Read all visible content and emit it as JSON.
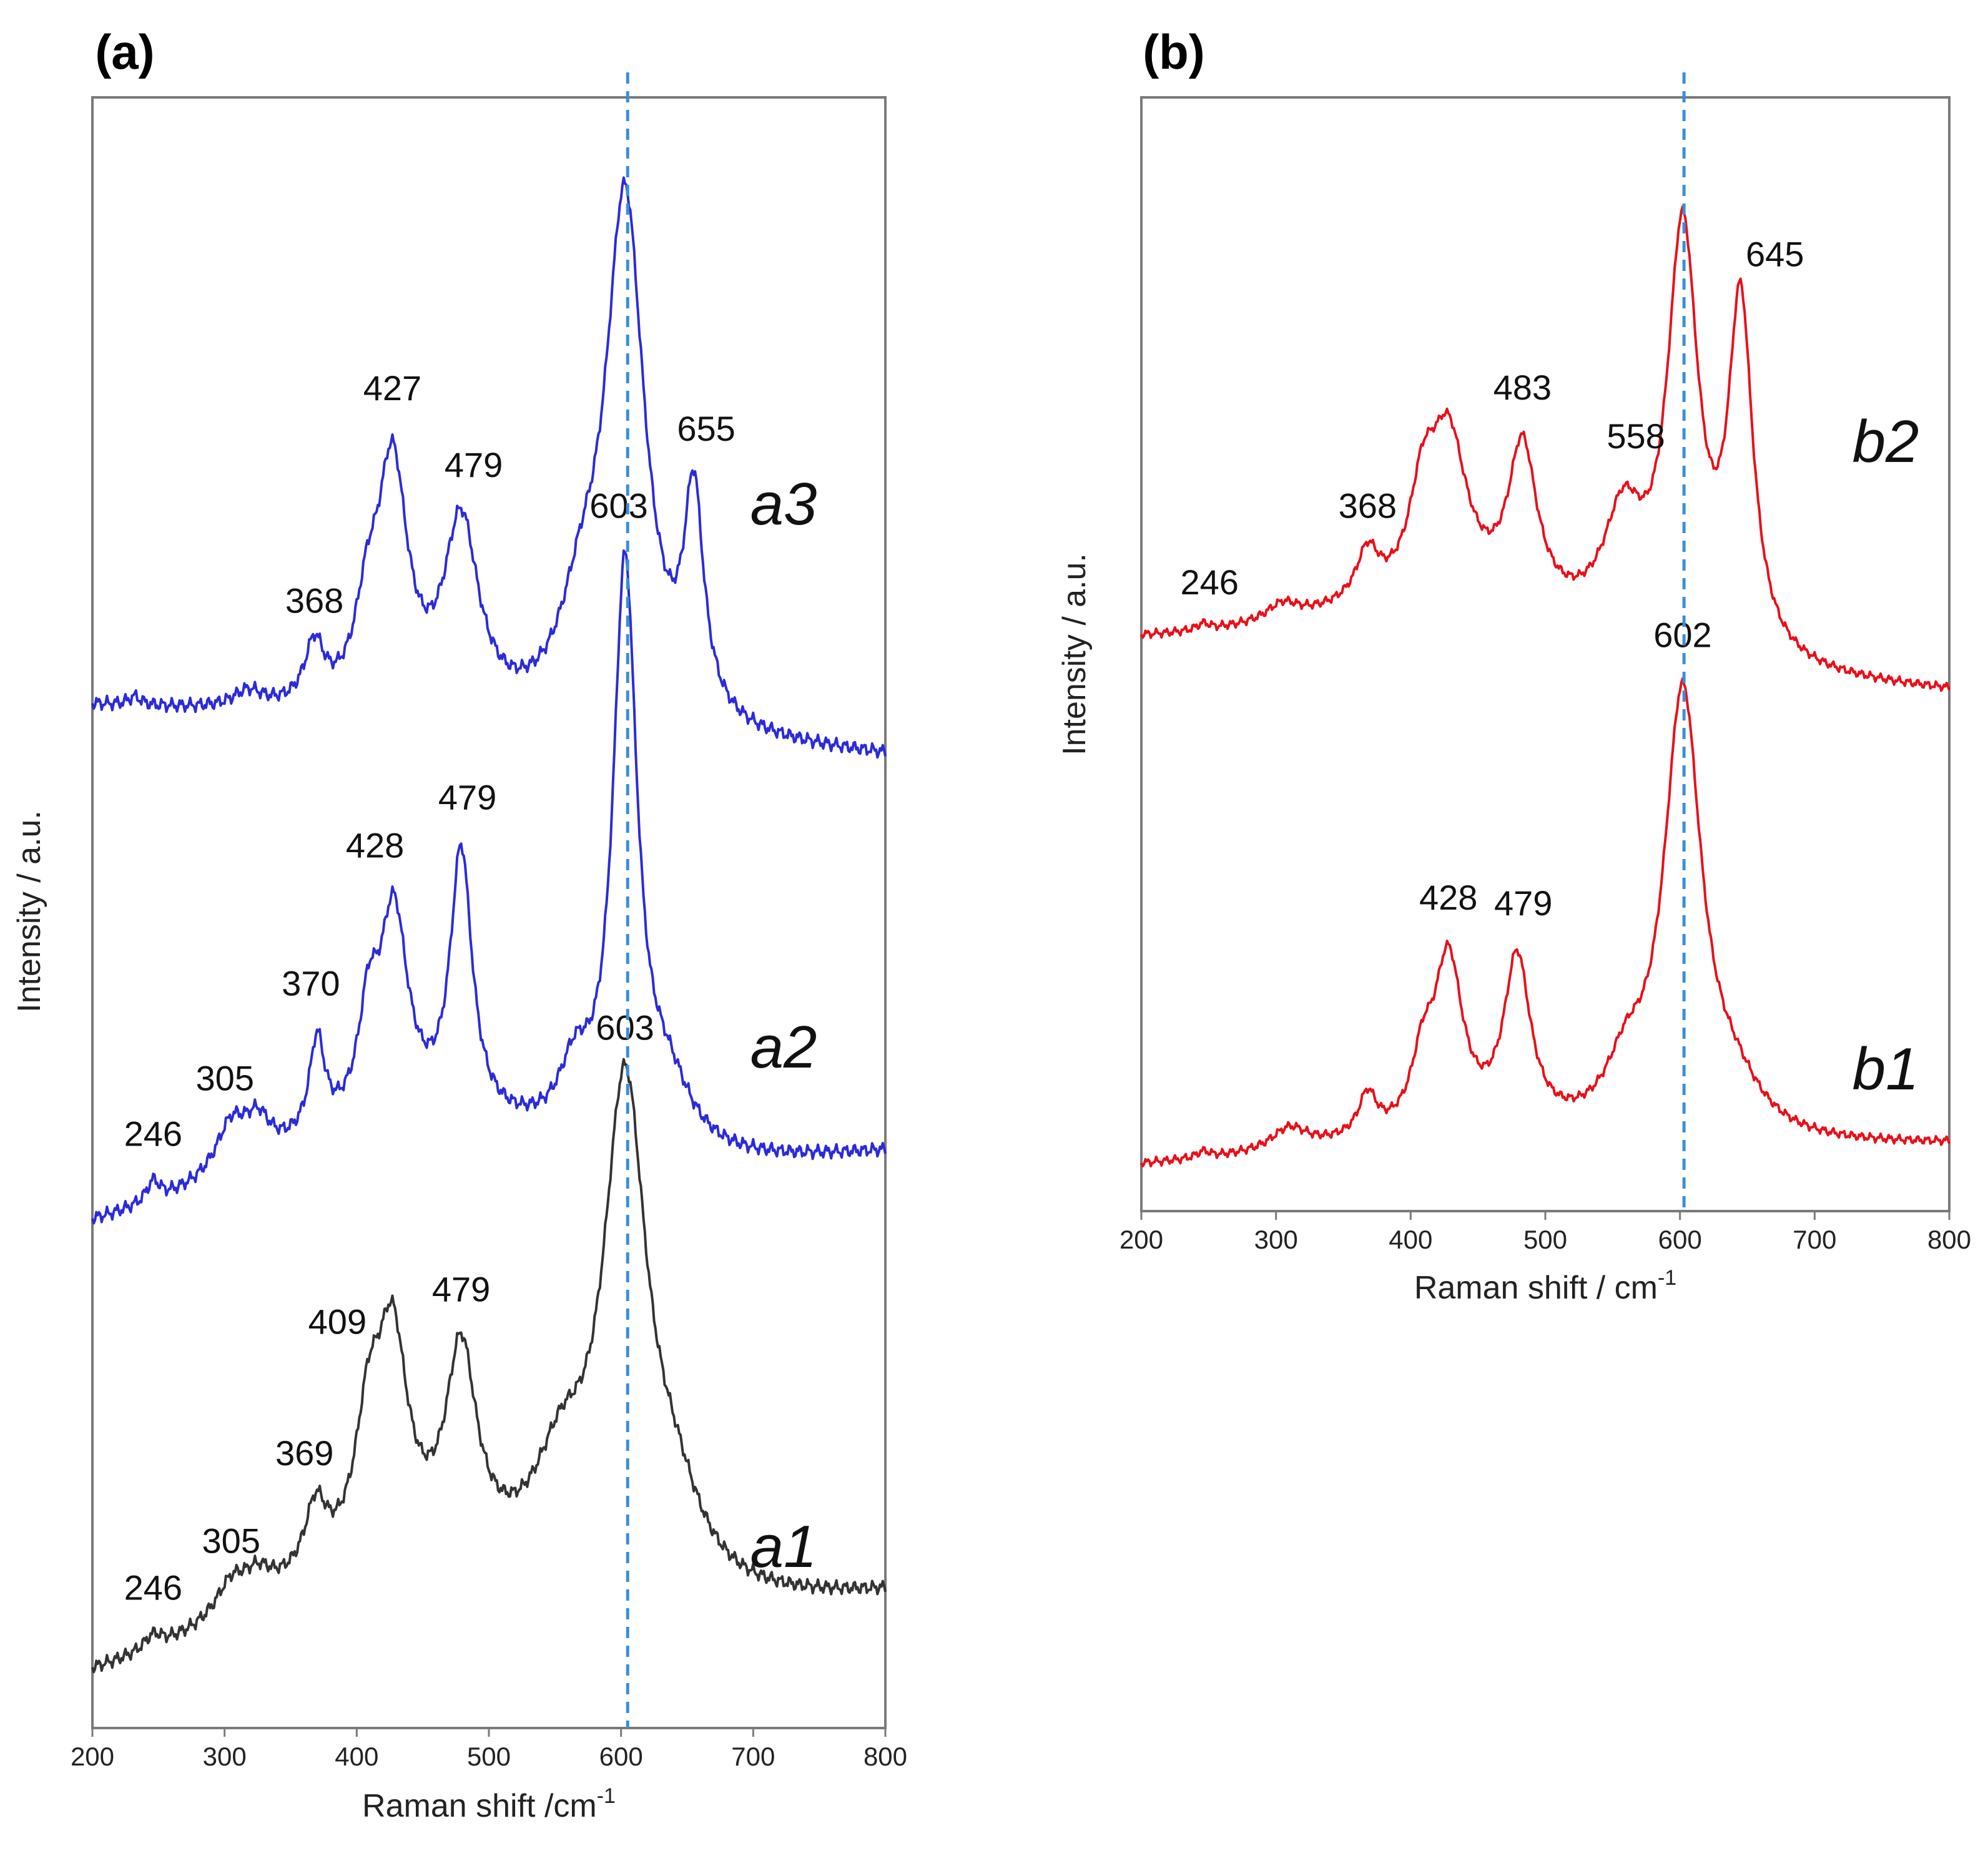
{
  "chart_data": [
    {
      "type": "line",
      "panel": "(a)",
      "xlabel": "Raman shift /cm",
      "xlabel_sup": "-1",
      "ylabel": "Intensity / a.u.",
      "xlim": [
        200,
        800
      ],
      "x_ticks": [
        200,
        300,
        400,
        500,
        600,
        700,
        800
      ],
      "y_ticks": "none",
      "reference_line": 605,
      "series": [
        {
          "name": "a1",
          "color": "#333333",
          "baseline": 0.25,
          "peaks": [
            [
              246,
              0.08,
              8
            ],
            [
              305,
              0.18,
              14
            ],
            [
              325,
              0.15,
              14
            ],
            [
              369,
              0.38,
              10
            ],
            [
              409,
              0.7,
              12
            ],
            [
              427,
              1.2,
              14
            ],
            [
              479,
              1.15,
              14
            ],
            [
              555,
              0.55,
              25
            ],
            [
              603,
              2.85,
              20
            ],
            [
              640,
              0.4,
              25
            ]
          ],
          "background": [
            0.02,
            0.45,
            0.5
          ],
          "labels": [
            {
              "x": 246,
              "text": "246"
            },
            {
              "x": 305,
              "text": "305"
            },
            {
              "x": 369,
              "text": "369"
            },
            {
              "x": 409,
              "text": "409"
            },
            {
              "x": 479,
              "text": "479"
            },
            {
              "x": 603,
              "text": "603"
            }
          ]
        },
        {
          "name": "a2",
          "color": "#2b2bd9",
          "baseline": 2.9,
          "peaks": [
            [
              246,
              0.12,
              6
            ],
            [
              305,
              0.28,
              14
            ],
            [
              325,
              0.22,
              12
            ],
            [
              370,
              0.55,
              7
            ],
            [
              409,
              0.55,
              9
            ],
            [
              428,
              1.2,
              13
            ],
            [
              479,
              1.55,
              10
            ],
            [
              565,
              0.35,
              14
            ],
            [
              603,
              3.35,
              11
            ],
            [
              635,
              0.35,
              22
            ]
          ],
          "background": [
            0.0,
            0.4,
            0.45
          ],
          "labels": [
            {
              "x": 246,
              "text": "246"
            },
            {
              "x": 305,
              "text": "305"
            },
            {
              "x": 370,
              "text": "370"
            },
            {
              "x": 428,
              "text": "428"
            },
            {
              "x": 479,
              "text": "479"
            },
            {
              "x": 603,
              "text": "603"
            }
          ]
        },
        {
          "name": "a3",
          "color": "#2b2bd9",
          "baseline": 5.95,
          "peaks": [
            [
              232,
              0.05,
              6
            ],
            [
              318,
              0.1,
              14
            ],
            [
              368,
              0.35,
              9
            ],
            [
              408,
              0.45,
              11
            ],
            [
              427,
              1.4,
              14
            ],
            [
              479,
              1.1,
              16
            ],
            [
              570,
              0.5,
              20
            ],
            [
              603,
              3.05,
              18
            ],
            [
              655,
              1.25,
              9
            ]
          ],
          "background": [
            0.0,
            0.0,
            -0.3
          ],
          "labels": [
            {
              "x": 368,
              "text": "368"
            },
            {
              "x": 427,
              "text": "427"
            },
            {
              "x": 479,
              "text": "479"
            },
            {
              "x": 655,
              "text": "655"
            }
          ]
        }
      ]
    },
    {
      "type": "line",
      "panel": "(b)",
      "xlabel": "Raman shift / cm",
      "xlabel_sup": "-1",
      "ylabel": "Intensity / a.u.",
      "xlim": [
        200,
        800
      ],
      "x_ticks": [
        200,
        300,
        400,
        500,
        600,
        700,
        800
      ],
      "y_ticks": "none",
      "reference_line": 603,
      "series": [
        {
          "name": "b1",
          "color": "#e8101a",
          "baseline": 0.4,
          "peaks": [
            [
              246,
              0.06,
              6
            ],
            [
              310,
              0.2,
              16
            ],
            [
              368,
              0.38,
              8
            ],
            [
              409,
              0.55,
              10
            ],
            [
              428,
              1.55,
              13
            ],
            [
              479,
              1.55,
              12
            ],
            [
              560,
              0.5,
              18
            ],
            [
              602,
              4.05,
              17
            ],
            [
              640,
              0.35,
              25
            ]
          ],
          "background": [
            0.0,
            0.15,
            0.2
          ],
          "labels": [
            {
              "x": 428,
              "text": "428"
            },
            {
              "x": 479,
              "text": "479"
            },
            {
              "x": 602,
              "text": "602"
            }
          ]
        },
        {
          "name": "b2",
          "color": "#e8101a",
          "baseline": 5.2,
          "peaks": [
            [
              246,
              0.06,
              6
            ],
            [
              305,
              0.15,
              14
            ],
            [
              368,
              0.45,
              10
            ],
            [
              409,
              0.8,
              12
            ],
            [
              428,
              1.45,
              17
            ],
            [
              483,
              1.45,
              13
            ],
            [
              558,
              1.0,
              18
            ],
            [
              602,
              3.75,
              14
            ],
            [
              645,
              3.15,
              11
            ]
          ],
          "background": [
            0.0,
            0.45,
            -0.45
          ],
          "labels": [
            {
              "x": 246,
              "text": "246"
            },
            {
              "x": 368,
              "text": "368"
            },
            {
              "x": 483,
              "text": "483"
            },
            {
              "x": 558,
              "text": "558"
            },
            {
              "x": 645,
              "text": "645"
            }
          ]
        }
      ]
    }
  ]
}
